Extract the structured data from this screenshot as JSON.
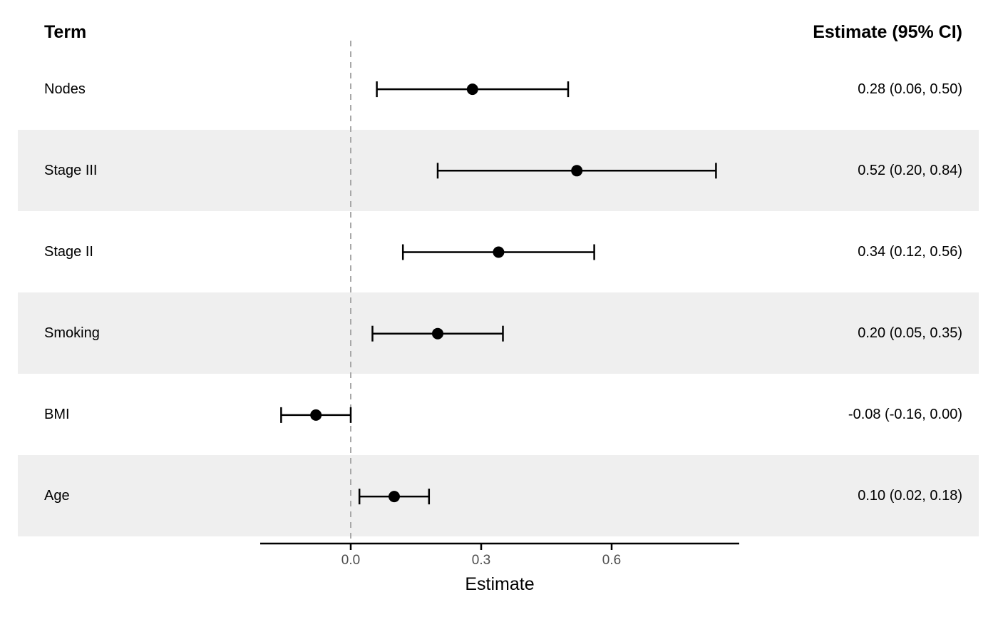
{
  "header": {
    "term": "Term",
    "estimate": "Estimate (95% CI)"
  },
  "rows": [
    {
      "term": "Nodes",
      "value": "0.28 (0.06, 0.50)"
    },
    {
      "term": "Stage III",
      "value": "0.52 (0.20, 0.84)"
    },
    {
      "term": "Stage II",
      "value": "0.34 (0.12, 0.56)"
    },
    {
      "term": "Smoking",
      "value": "0.20 (0.05, 0.35)"
    },
    {
      "term": "BMI",
      "value": "-0.08 (-0.16, 0.00)"
    },
    {
      "term": "Age",
      "value": "0.10 (0.02, 0.18)"
    }
  ],
  "chart_data": {
    "type": "scatter",
    "subtype": "forest-plot",
    "title": "",
    "categories": [
      "Nodes",
      "Stage III",
      "Stage II",
      "Smoking",
      "BMI",
      "Age"
    ],
    "series": [
      {
        "name": "Estimate",
        "values": [
          0.28,
          0.52,
          0.34,
          0.2,
          -0.08,
          0.1
        ]
      },
      {
        "name": "CI lower",
        "values": [
          0.06,
          0.2,
          0.12,
          0.05,
          -0.16,
          0.02
        ]
      },
      {
        "name": "CI upper",
        "values": [
          0.5,
          0.84,
          0.56,
          0.35,
          0.0,
          0.18
        ]
      }
    ],
    "estimate_labels": [
      "0.28 (0.06, 0.50)",
      "0.52 (0.20, 0.84)",
      "0.34 (0.12, 0.56)",
      "0.20 (0.05, 0.35)",
      "-0.08 (-0.16, 0.00)",
      "0.10 (0.02, 0.18)"
    ],
    "xlabel": "Estimate",
    "ylabel": "",
    "x_tick_labels": [
      "0.0",
      "0.3",
      "0.6"
    ],
    "x_tick_values": [
      0.0,
      0.3,
      0.6
    ],
    "xlim": [
      -0.21,
      0.89
    ],
    "reference_line": 0.0,
    "grid": false,
    "legend": false,
    "row_shaded": [
      false,
      true,
      false,
      true,
      false,
      true
    ],
    "colors": {
      "band": "#efefef",
      "marker": "#000000",
      "ci_line": "#000000",
      "reference_line": "#a8a8a8",
      "axis": "#000000",
      "tick_label": "#4d4d4d",
      "text": "#000000"
    }
  }
}
